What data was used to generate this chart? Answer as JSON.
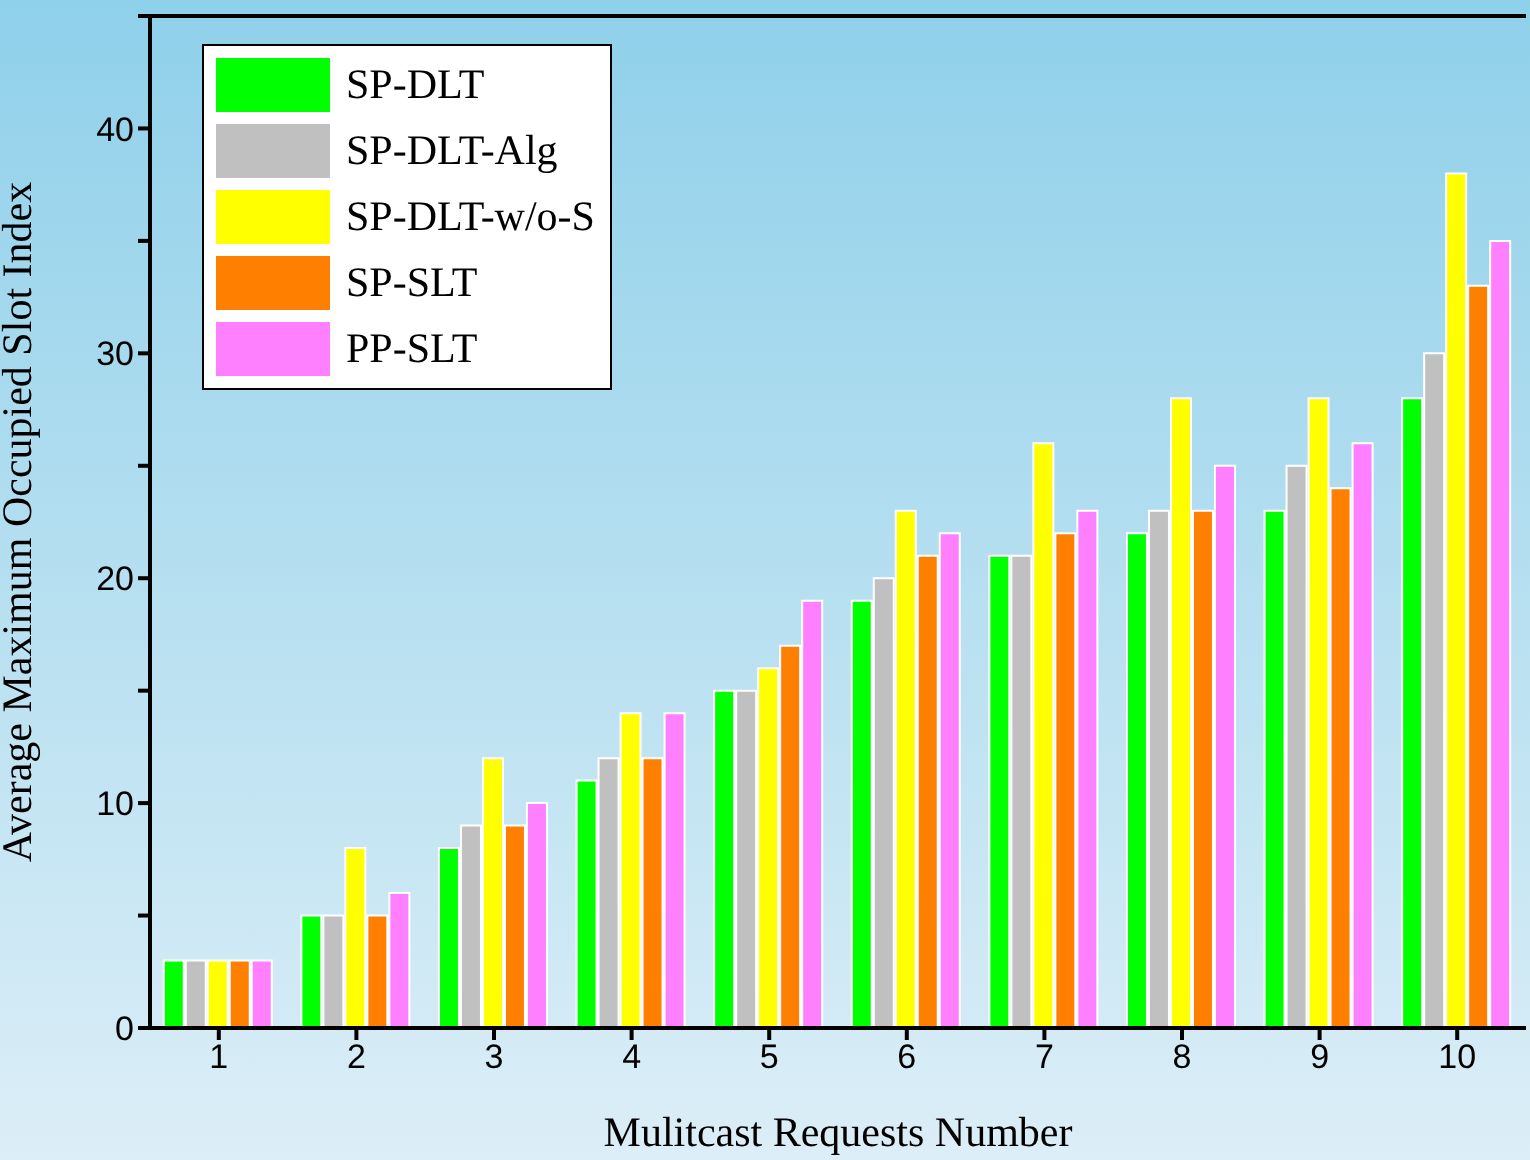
{
  "chart_data": {
    "type": "bar",
    "xlabel": "Mulitcast Requests Number",
    "ylabel": "Average Maximum Occupied Slot Index",
    "categories": [
      "1",
      "2",
      "3",
      "4",
      "5",
      "6",
      "7",
      "8",
      "9",
      "10"
    ],
    "series": [
      {
        "name": "SP-DLT",
        "color": "#00ff00",
        "values": [
          3,
          5,
          8,
          11,
          15,
          19,
          21,
          22,
          23,
          28
        ]
      },
      {
        "name": "SP-DLT-Alg",
        "color": "#c0c0c0",
        "values": [
          3,
          5,
          9,
          12,
          15,
          20,
          21,
          23,
          25,
          30
        ]
      },
      {
        "name": "SP-DLT-w/o-S",
        "color": "#ffff00",
        "values": [
          3,
          8,
          12,
          14,
          16,
          23,
          26,
          28,
          28,
          38
        ]
      },
      {
        "name": "SP-SLT",
        "color": "#ff8000",
        "values": [
          3,
          5,
          9,
          12,
          17,
          21,
          22,
          23,
          24,
          33
        ]
      },
      {
        "name": "PP-SLT",
        "color": "#ff80ff",
        "values": [
          3,
          6,
          10,
          14,
          19,
          22,
          23,
          25,
          26,
          35
        ]
      }
    ],
    "ylim": [
      0,
      45
    ],
    "yticks": [
      0,
      {
        "value": 5,
        "label": null
      },
      10,
      {
        "value": 15,
        "label": null
      },
      20,
      {
        "value": 25,
        "label": null
      },
      30,
      {
        "value": 35,
        "label": null
      },
      40,
      {
        "value": 45,
        "label": null
      }
    ],
    "grid": false,
    "legend": "top left"
  }
}
